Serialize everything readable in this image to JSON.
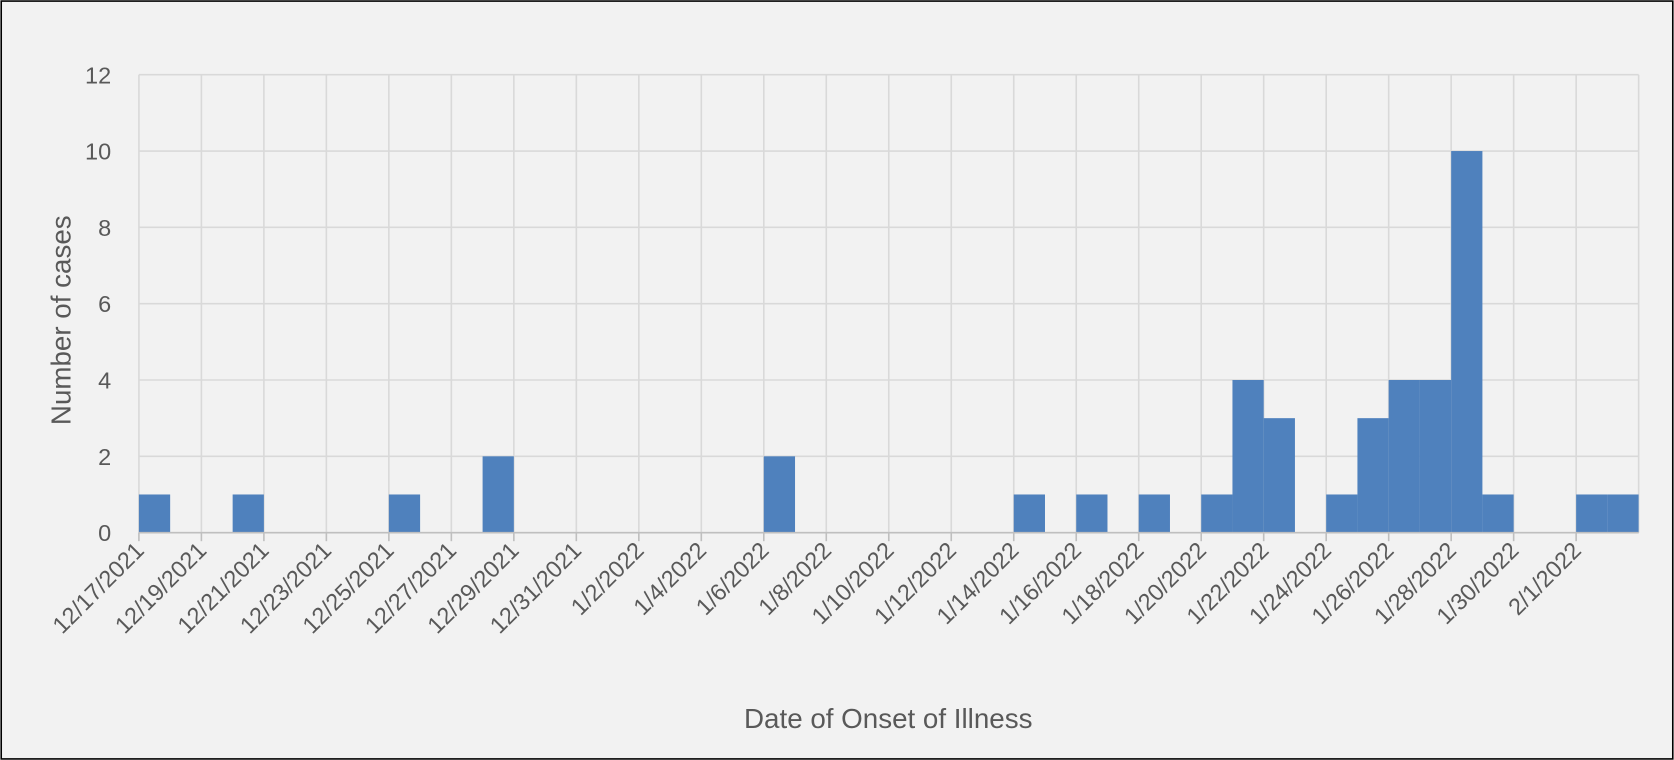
{
  "chart_data": {
    "type": "bar",
    "x_label": "Date of Onset of Illness",
    "y_label": "Number of cases",
    "categories": [
      "12/17/2021",
      null,
      "12/19/2021",
      null,
      "12/21/2021",
      null,
      "12/23/2021",
      null,
      "12/25/2021",
      null,
      "12/27/2021",
      null,
      "12/29/2021",
      null,
      "12/31/2021",
      null,
      "1/2/2022",
      null,
      "1/4/2022",
      null,
      "1/6/2022",
      null,
      "1/8/2022",
      null,
      "1/10/2022",
      null,
      "1/12/2022",
      null,
      "1/14/2022",
      null,
      "1/16/2022",
      null,
      "1/18/2022",
      null,
      "1/20/2022",
      null,
      "1/22/2022",
      null,
      "1/24/2022",
      null,
      "1/26/2022",
      null,
      "1/28/2022",
      null,
      "1/30/2022",
      null,
      "2/1/2022",
      null
    ],
    "values": [
      1,
      0,
      0,
      1,
      0,
      0,
      0,
      0,
      1,
      0,
      0,
      2,
      0,
      0,
      0,
      0,
      0,
      0,
      0,
      0,
      2,
      0,
      0,
      0,
      0,
      0,
      0,
      0,
      1,
      0,
      1,
      0,
      1,
      0,
      1,
      4,
      3,
      0,
      1,
      3,
      4,
      4,
      10,
      1,
      0,
      0,
      1,
      1
    ],
    "color": "#4f81bd",
    "ylim": [
      0,
      12
    ],
    "yticks": [
      0,
      2,
      4,
      6,
      8,
      10,
      12
    ],
    "grid": true
  }
}
